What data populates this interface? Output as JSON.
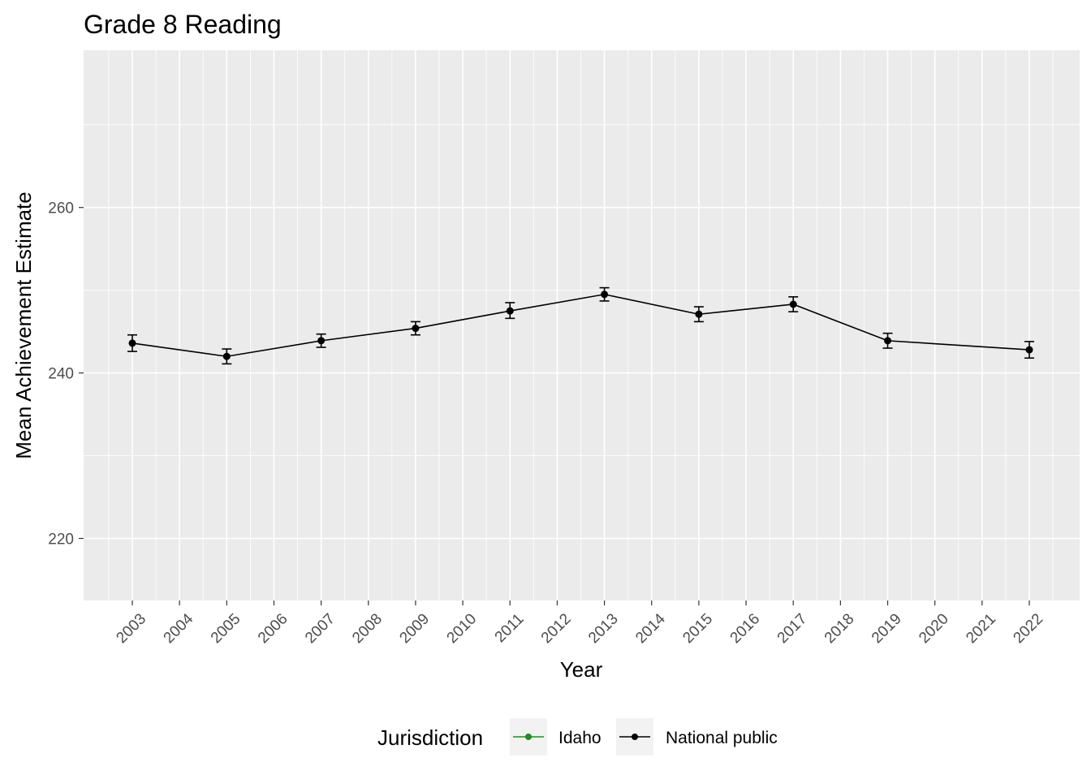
{
  "chart_data": {
    "type": "line",
    "title": "Grade 8 Reading",
    "xlabel": "Year",
    "ylabel": "Mean Achievement Estimate",
    "x_ticks": [
      "2003",
      "2004",
      "2005",
      "2006",
      "2007",
      "2008",
      "2009",
      "2010",
      "2011",
      "2012",
      "2013",
      "2014",
      "2015",
      "2016",
      "2017",
      "2018",
      "2019",
      "2020",
      "2021",
      "2022"
    ],
    "y_ticks": [
      220,
      240,
      260
    ],
    "ylim": [
      212.5,
      279
    ],
    "grid": true,
    "legend": {
      "title": "Jurisdiction",
      "position": "bottom",
      "entries": [
        {
          "label": "Idaho",
          "color": "#228B22"
        },
        {
          "label": "National public",
          "color": "#000000"
        }
      ]
    },
    "series": [
      {
        "name": "National public",
        "color": "#000000",
        "points": [
          {
            "x": "2003",
            "y": 243.6,
            "lo": 242.6,
            "hi": 244.6
          },
          {
            "x": "2005",
            "y": 242.0,
            "lo": 241.1,
            "hi": 242.9
          },
          {
            "x": "2007",
            "y": 243.9,
            "lo": 243.1,
            "hi": 244.7
          },
          {
            "x": "2009",
            "y": 245.4,
            "lo": 244.6,
            "hi": 246.2
          },
          {
            "x": "2011",
            "y": 247.5,
            "lo": 246.6,
            "hi": 248.5
          },
          {
            "x": "2013",
            "y": 249.5,
            "lo": 248.7,
            "hi": 250.3
          },
          {
            "x": "2015",
            "y": 247.1,
            "lo": 246.2,
            "hi": 248.0
          },
          {
            "x": "2017",
            "y": 248.3,
            "lo": 247.4,
            "hi": 249.2
          },
          {
            "x": "2019",
            "y": 243.9,
            "lo": 243.0,
            "hi": 244.8
          },
          {
            "x": "2022",
            "y": 242.8,
            "lo": 241.8,
            "hi": 243.8
          }
        ]
      },
      {
        "name": "Idaho",
        "color": "#228B22",
        "points": []
      }
    ]
  }
}
